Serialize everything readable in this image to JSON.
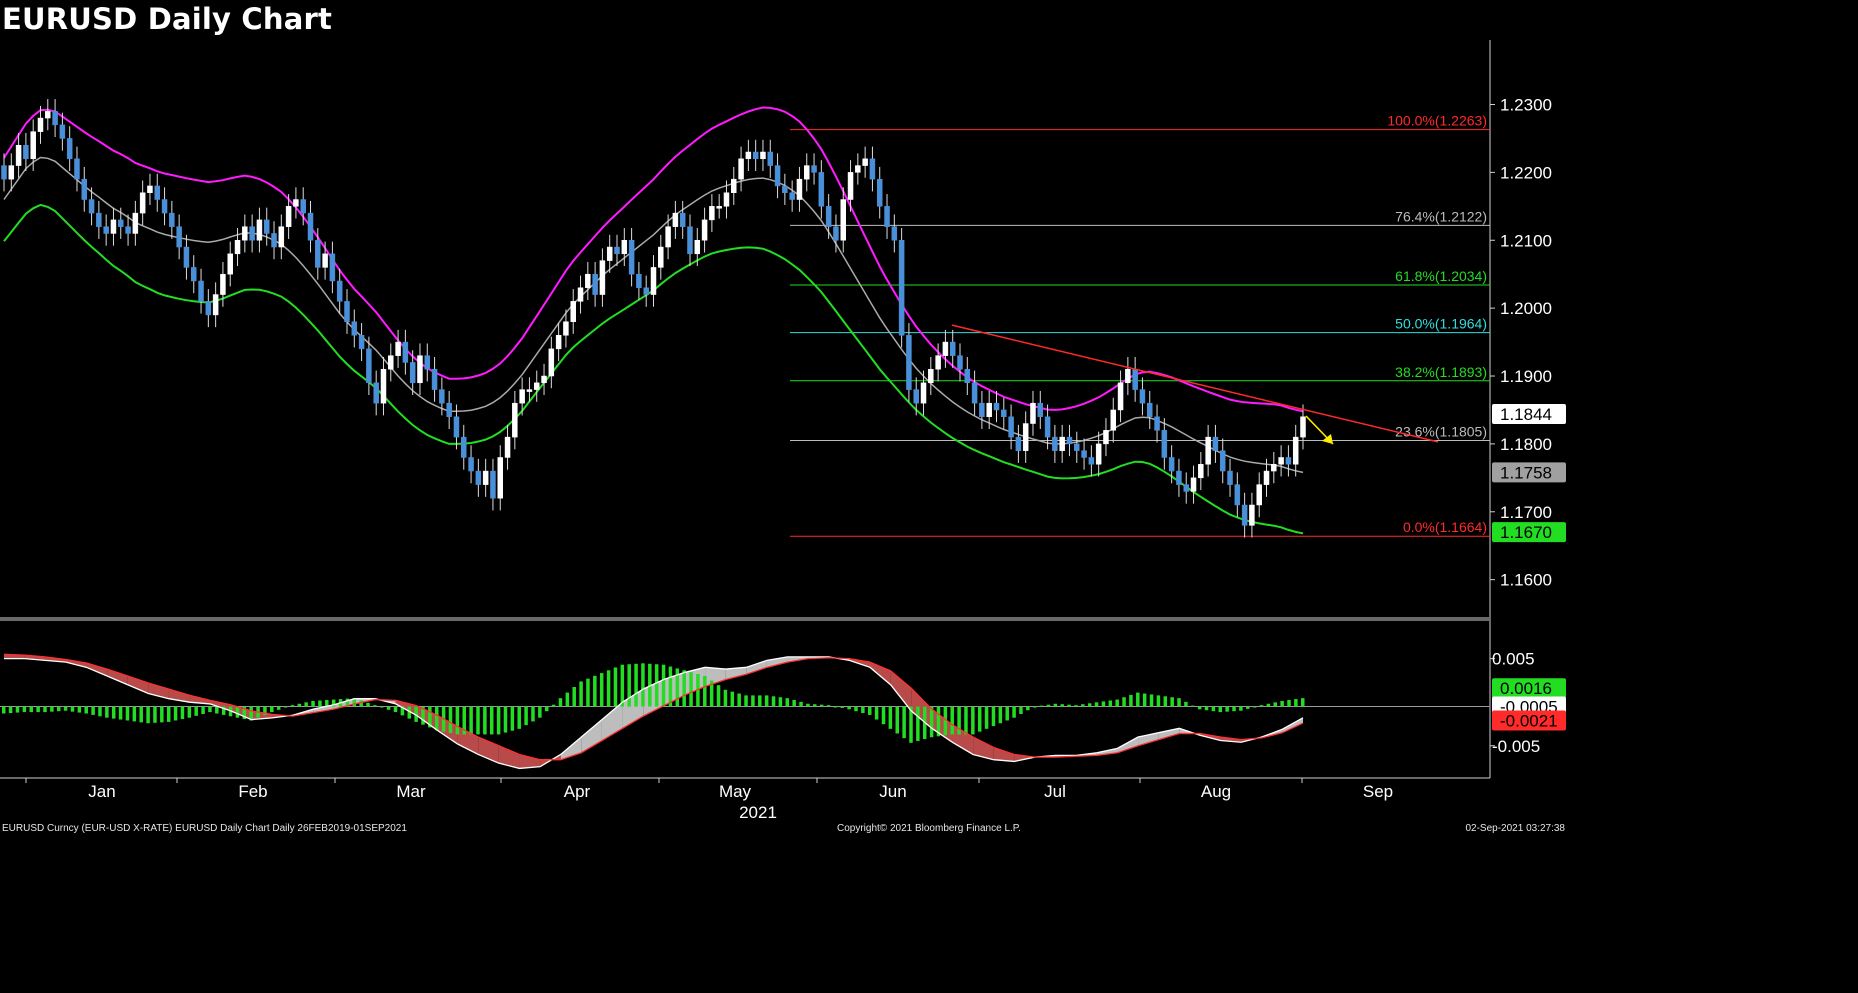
{
  "title": "EURUSD Daily Chart",
  "footer": {
    "left": "EURUSD Curncy (EUR-USD X-RATE) EURUSD Daily Chart  Daily 26FEB2019-01SEP2021",
    "center": "Copyright© 2021 Bloomberg Finance L.P.",
    "right": "02-Sep-2021 03:27:38"
  },
  "colors": {
    "up": "#ffffff",
    "down": "#4a90d9",
    "upper_band": "#ff1aff",
    "lower_band": "#22dd22",
    "mid_band": "#aaaaaa",
    "trendline": "#ff2a2a",
    "hist_pos": "#22dd22",
    "macd_fill": "#b84a4a"
  },
  "chart_data": [
    {
      "type": "candlestick",
      "year_label": "2021",
      "x_labels": [
        "Jan",
        "Feb",
        "Mar",
        "Apr",
        "May",
        "Jun",
        "Jul",
        "Aug",
        "Sep"
      ],
      "y_ticks": [
        "1.2300",
        "1.2200",
        "1.2100",
        "1.2000",
        "1.1900",
        "1.1800",
        "1.1700",
        "1.1600"
      ],
      "ylim": [
        1.1545,
        1.2395
      ],
      "price_tags": [
        {
          "label": "1.1844",
          "value": 1.1844,
          "bg": "#ffffff",
          "fg": "#000000"
        },
        {
          "label": "1.1758",
          "value": 1.1758,
          "bg": "#a0a0a0",
          "fg": "#000000"
        },
        {
          "label": "1.1670",
          "value": 1.167,
          "bg": "#22dd22",
          "fg": "#000000"
        }
      ],
      "fib_levels": [
        {
          "label": "100.0%(1.2263)",
          "value": 1.2263,
          "color": "#ff2a2a"
        },
        {
          "label": "76.4%(1.2122)",
          "value": 1.2122,
          "color": "#bbbbbb"
        },
        {
          "label": "61.8%(1.2034)",
          "value": 1.2034,
          "color": "#22dd22"
        },
        {
          "label": "50.0%(1.1964)",
          "value": 1.1964,
          "color": "#33dddd"
        },
        {
          "label": "38.2%(1.1893)",
          "value": 1.1893,
          "color": "#22dd22"
        },
        {
          "label": "23.6%(1.1805)",
          "value": 1.1805,
          "color": "#bbbbbb"
        },
        {
          "label": "0.0%(1.1664)",
          "value": 1.1664,
          "color": "#ff2a2a"
        }
      ],
      "trendline": [
        {
          "x": "Jun-10",
          "y": 1.1975
        },
        {
          "x": "Sep-08",
          "y": 1.1803
        }
      ],
      "series": [
        {
          "name": "",
          "kind": "close",
          "values": [
            1.219,
            1.221,
            1.224,
            1.222,
            1.226,
            1.228,
            1.229,
            1.227,
            1.225,
            1.222,
            1.219,
            1.216,
            1.214,
            1.212,
            1.211,
            1.213,
            1.212,
            1.211,
            1.214,
            1.217,
            1.218,
            1.216,
            1.214,
            1.212,
            1.209,
            1.206,
            1.204,
            1.201,
            1.199,
            1.202,
            1.205,
            1.208,
            1.21,
            1.212,
            1.21,
            1.213,
            1.211,
            1.209,
            1.212,
            1.215,
            1.216,
            1.214,
            1.21,
            1.206,
            1.208,
            1.204,
            1.201,
            1.198,
            1.196,
            1.194,
            1.189,
            1.186,
            1.191,
            1.193,
            1.195,
            1.192,
            1.189,
            1.193,
            1.191,
            1.188,
            1.186,
            1.184,
            1.181,
            1.178,
            1.176,
            1.174,
            1.176,
            1.172,
            1.178,
            1.181,
            1.186,
            1.188,
            1.188,
            1.189,
            1.19,
            1.194,
            1.196,
            1.198,
            1.201,
            1.203,
            1.205,
            1.202,
            1.207,
            1.209,
            1.208,
            1.21,
            1.205,
            1.203,
            1.202,
            1.206,
            1.209,
            1.212,
            1.214,
            1.212,
            1.208,
            1.21,
            1.213,
            1.215,
            1.215,
            1.217,
            1.219,
            1.222,
            1.223,
            1.222,
            1.223,
            1.221,
            1.218,
            1.217,
            1.216,
            1.219,
            1.221,
            1.22,
            1.215,
            1.212,
            1.21,
            1.216,
            1.22,
            1.221,
            1.222,
            1.219,
            1.215,
            1.212,
            1.21,
            1.196,
            1.188,
            1.186,
            1.189,
            1.191,
            1.193,
            1.195,
            1.193,
            1.191,
            1.189,
            1.186,
            1.184,
            1.186,
            1.185,
            1.184,
            1.181,
            1.179,
            1.183,
            1.186,
            1.184,
            1.181,
            1.179,
            1.181,
            1.18,
            1.179,
            1.178,
            1.177,
            1.18,
            1.182,
            1.185,
            1.189,
            1.191,
            1.188,
            1.186,
            1.184,
            1.182,
            1.178,
            1.176,
            1.174,
            1.173,
            1.175,
            1.177,
            1.181,
            1.179,
            1.176,
            1.174,
            1.171,
            1.168,
            1.171,
            1.174,
            1.176,
            1.177,
            1.178,
            1.177,
            1.181,
            1.184
          ]
        },
        {
          "name": "",
          "kind": "mid_band",
          "values": [
            1.216,
            1.2185,
            1.221,
            1.2222,
            1.222,
            1.2205,
            1.219,
            1.2175,
            1.2162,
            1.2148,
            1.2138,
            1.2125,
            1.2118,
            1.211,
            1.2106,
            1.2102,
            1.2099,
            1.2097,
            1.21,
            1.2106,
            1.2111,
            1.211,
            1.2104,
            1.2095,
            1.208,
            1.206,
            1.2038,
            1.2014,
            1.199,
            1.197,
            1.1954,
            1.1937,
            1.1916,
            1.1895,
            1.1878,
            1.1864,
            1.1855,
            1.1848,
            1.1848,
            1.185,
            1.1855,
            1.1864,
            1.188,
            1.19,
            1.1925,
            1.195,
            1.1975,
            1.2,
            1.2018,
            1.2035,
            1.2052,
            1.2066,
            1.208,
            1.2094,
            1.2108,
            1.2125,
            1.214,
            1.2152,
            1.2164,
            1.2174,
            1.218,
            1.2186,
            1.219,
            1.2192,
            1.2188,
            1.218,
            1.2168,
            1.215,
            1.2128,
            1.21,
            1.207,
            1.204,
            1.201,
            1.198,
            1.1955,
            1.193,
            1.1908,
            1.189,
            1.1874,
            1.186,
            1.1848,
            1.1838,
            1.183,
            1.1822,
            1.1816,
            1.181,
            1.1805,
            1.18,
            1.18,
            1.1802,
            1.1806,
            1.1812,
            1.182,
            1.183,
            1.1838,
            1.184,
            1.1834,
            1.1826,
            1.1816,
            1.1806,
            1.1797,
            1.1788,
            1.178,
            1.1775,
            1.1772,
            1.177,
            1.1768,
            1.1762,
            1.1758
          ]
        }
      ]
    },
    {
      "type": "macd",
      "y_ticks": [
        "0.005",
        "-0.005"
      ],
      "ylim": [
        -0.0087,
        0.0092
      ],
      "price_tags": [
        {
          "label": "0.0016",
          "value": 0.0016,
          "bg": "#22dd22",
          "fg": "#000000"
        },
        {
          "label": "-0.0005",
          "value": -0.0005,
          "bg": "#ffffff",
          "fg": "#000000"
        },
        {
          "label": "-0.0021",
          "value": -0.0021,
          "bg": "#ff2a2a",
          "fg": "#000000"
        }
      ],
      "series": [
        {
          "name": "",
          "kind": "macd",
          "values": [
            0.005,
            0.005,
            0.0048,
            0.0046,
            0.004,
            0.003,
            0.002,
            0.001,
            0.0004,
            0.0,
            -0.0002,
            -0.001,
            -0.002,
            -0.0018,
            -0.0015,
            -0.0008,
            -0.0003,
            0.0004,
            0.0004,
            -0.0002,
            -0.0015,
            -0.0032,
            -0.0048,
            -0.006,
            -0.007,
            -0.0076,
            -0.0074,
            -0.006,
            -0.004,
            -0.002,
            0.0,
            0.0015,
            0.0026,
            0.0034,
            0.004,
            0.0038,
            0.004,
            0.0048,
            0.0052,
            0.0052,
            0.0052,
            0.0048,
            0.004,
            0.002,
            -0.001,
            -0.003,
            -0.0046,
            -0.006,
            -0.0066,
            -0.0068,
            -0.0063,
            -0.0061,
            -0.0061,
            -0.0058,
            -0.0053,
            -0.004,
            -0.0035,
            -0.003,
            -0.0038,
            -0.0044,
            -0.0046,
            -0.004,
            -0.0031,
            -0.0018
          ]
        },
        {
          "name": "",
          "kind": "signal",
          "values": [
            0.0055,
            0.0054,
            0.0052,
            0.0049,
            0.0045,
            0.0038,
            0.003,
            0.0022,
            0.0015,
            0.0008,
            0.0002,
            -0.0003,
            -0.001,
            -0.0014,
            -0.0016,
            -0.0012,
            -0.0008,
            -0.0002,
            0.0003,
            0.0002,
            -0.0004,
            -0.0015,
            -0.0028,
            -0.004,
            -0.005,
            -0.006,
            -0.0066,
            -0.0066,
            -0.0058,
            -0.0044,
            -0.003,
            -0.0016,
            -0.0004,
            0.0008,
            0.0018,
            0.0026,
            0.0032,
            0.004,
            0.0046,
            0.005,
            0.0051,
            0.005,
            0.0046,
            0.0036,
            0.0016,
            -0.0008,
            -0.0026,
            -0.004,
            -0.0052,
            -0.006,
            -0.0063,
            -0.0063,
            -0.0062,
            -0.0061,
            -0.0058,
            -0.005,
            -0.0043,
            -0.0036,
            -0.0036,
            -0.004,
            -0.0043,
            -0.0041,
            -0.0035,
            -0.0024
          ]
        }
      ]
    }
  ]
}
